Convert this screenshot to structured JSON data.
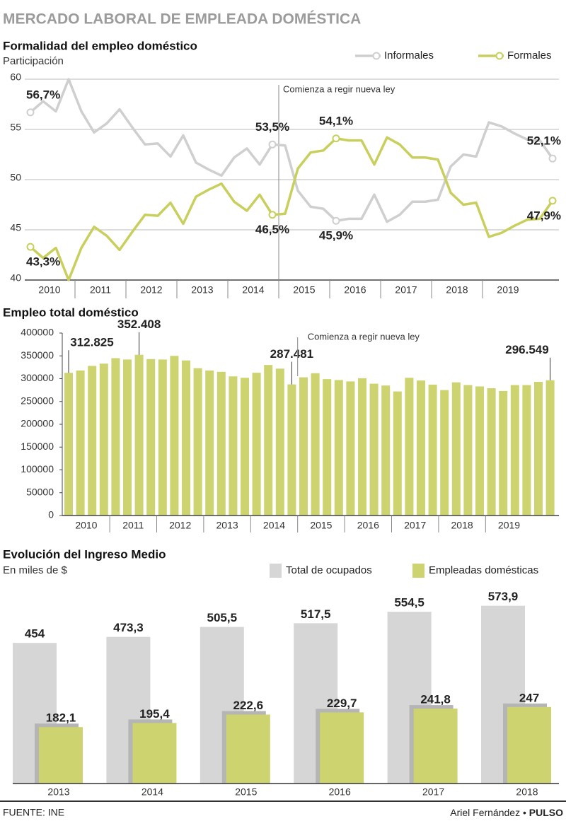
{
  "header": {
    "title": "MERCADO LABORAL DE EMPLEADA DOMÉSTICA"
  },
  "chart_data": [
    {
      "type": "line",
      "title": "Formalidad del empleo doméstico",
      "subtitle": "Participación",
      "year_labels": [
        "2010",
        "2011",
        "2012",
        "2013",
        "2014",
        "2015",
        "2016",
        "2017",
        "2018",
        "2019"
      ],
      "ylim": [
        40,
        60
      ],
      "yticks": [
        40,
        45,
        50,
        55,
        60
      ],
      "grid": true,
      "legend": "top-right",
      "annotation": "Comienza a regir nueva ley",
      "series": [
        {
          "name": "Informales",
          "color": "#cfcfcf",
          "values": [
            56.7,
            57.8,
            56.8,
            60.0,
            56.8,
            54.7,
            55.6,
            57.0,
            55.2,
            53.5,
            53.6,
            52.3,
            54.4,
            51.7,
            51.0,
            50.4,
            52.2,
            53.1,
            51.5,
            53.5,
            53.4,
            48.9,
            47.3,
            47.1,
            45.9,
            46.1,
            46.1,
            48.5,
            45.8,
            46.5,
            47.8,
            47.8,
            48.0,
            51.3,
            52.5,
            52.3,
            55.7,
            55.3,
            54.6,
            54.0,
            53.9,
            52.1
          ],
          "value_labels": [
            "56,7%",
            null,
            null,
            null,
            null,
            null,
            null,
            null,
            null,
            null,
            null,
            null,
            null,
            null,
            null,
            null,
            null,
            null,
            null,
            "53,5%",
            null,
            null,
            null,
            null,
            "45,9%",
            null,
            null,
            null,
            null,
            null,
            null,
            null,
            null,
            null,
            null,
            null,
            null,
            null,
            null,
            null,
            null,
            "52,1%"
          ]
        },
        {
          "name": "Formales",
          "color": "#c8cf5c",
          "values": [
            43.3,
            42.2,
            43.2,
            40.0,
            43.2,
            45.3,
            44.4,
            43.0,
            44.8,
            46.5,
            46.4,
            47.7,
            45.6,
            48.3,
            49.0,
            49.6,
            47.8,
            46.9,
            48.5,
            46.5,
            46.6,
            51.1,
            52.7,
            52.9,
            54.1,
            53.9,
            53.9,
            51.5,
            54.2,
            53.5,
            52.2,
            52.2,
            52.0,
            48.7,
            47.5,
            47.7,
            44.3,
            44.7,
            45.4,
            46.0,
            46.1,
            47.9
          ],
          "value_labels": [
            "43,3%",
            null,
            null,
            null,
            null,
            null,
            null,
            null,
            null,
            null,
            null,
            null,
            null,
            null,
            null,
            null,
            null,
            null,
            null,
            "46,5%",
            null,
            null,
            null,
            null,
            "54,1%",
            null,
            null,
            null,
            null,
            null,
            null,
            null,
            null,
            null,
            null,
            null,
            null,
            null,
            null,
            null,
            null,
            "47,9%"
          ]
        }
      ]
    },
    {
      "type": "bar",
      "title": "Empleo total doméstico",
      "year_labels": [
        "2010",
        "2011",
        "2012",
        "2013",
        "2014",
        "2015",
        "2016",
        "2017",
        "2018",
        "2019"
      ],
      "ylim": [
        0,
        400000
      ],
      "yticks": [
        0,
        50000,
        100000,
        150000,
        200000,
        250000,
        300000,
        350000,
        400000
      ],
      "color": "#cdd36e",
      "annotation": "Comienza a regir nueva ley",
      "values": [
        312825,
        318000,
        328000,
        333000,
        345000,
        342000,
        352408,
        343000,
        342000,
        350000,
        340000,
        323000,
        318000,
        315000,
        305000,
        302000,
        313000,
        330000,
        322000,
        287481,
        303000,
        312000,
        299000,
        297000,
        294000,
        301000,
        289000,
        285000,
        272000,
        302000,
        296000,
        287000,
        275000,
        292000,
        286000,
        283000,
        279000,
        273000,
        286000,
        286000,
        293000,
        296549
      ],
      "value_labels": [
        "312.825",
        null,
        null,
        null,
        null,
        null,
        "352.408",
        null,
        null,
        null,
        null,
        null,
        null,
        null,
        null,
        null,
        null,
        null,
        null,
        "287.481",
        null,
        null,
        null,
        null,
        null,
        null,
        null,
        null,
        null,
        null,
        null,
        null,
        null,
        null,
        null,
        null,
        null,
        null,
        null,
        null,
        null,
        "296.549"
      ]
    },
    {
      "type": "grouped_bar",
      "title": "Evolución del Ingreso Medio",
      "subtitle": "En miles de $",
      "categories": [
        "2013",
        "2014",
        "2015",
        "2016",
        "2017",
        "2018"
      ],
      "legend": "top-right",
      "series": [
        {
          "name": "Total de ocupados",
          "color": "#d6d6d6",
          "values": [
            454,
            473.3,
            505.5,
            517.5,
            554.5,
            573.9
          ],
          "value_labels": [
            "454",
            "473,3",
            "505,5",
            "517,5",
            "554,5",
            "573,9"
          ]
        },
        {
          "name": "Empleadas domésticas",
          "color": "#cdd36e",
          "values": [
            182.1,
            195.4,
            222.6,
            229.7,
            241.8,
            247
          ],
          "value_labels": [
            "182,1",
            "195,4",
            "222,6",
            "229,7",
            "241,8",
            "247"
          ]
        }
      ]
    }
  ],
  "footer": {
    "source": "FUENTE: INE",
    "author": "Ariel Fernández •",
    "outlet": "PULSO"
  }
}
